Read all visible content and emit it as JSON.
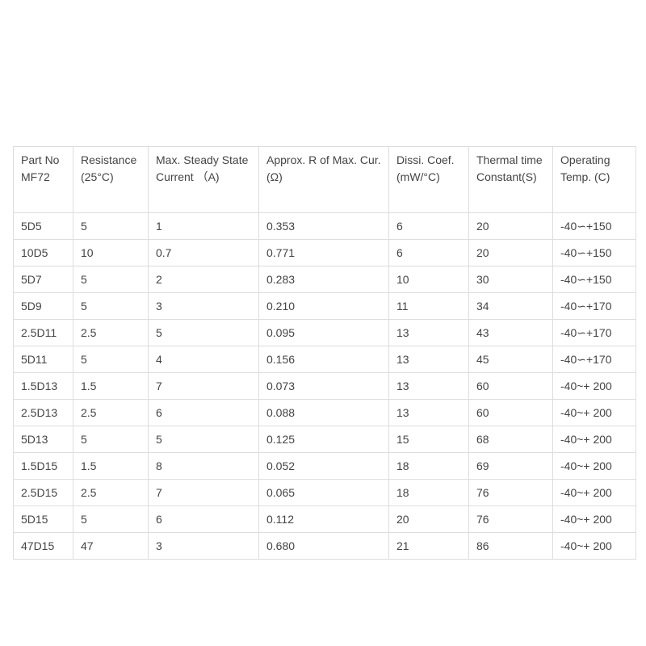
{
  "table": {
    "headers": [
      "Part No MF72",
      "Resistance (25°C)",
      "Max. Steady State Current （A)",
      "Approx. R of Max. Cur.(Ω)",
      "Dissi. Coef. (mW/°C)",
      "Thermal time Constant(S)",
      "Operating Temp. (C)"
    ],
    "rows": [
      [
        "5D5",
        "5",
        "1",
        "0.353",
        "6",
        "20",
        "-40∽+150"
      ],
      [
        "10D5",
        "10",
        "0.7",
        "0.771",
        "6",
        "20",
        "-40∽+150"
      ],
      [
        "5D7",
        "5",
        "2",
        "0.283",
        "10",
        "30",
        "-40∽+150"
      ],
      [
        "5D9",
        "5",
        "3",
        "0.210",
        "11",
        "34",
        "-40∽+170"
      ],
      [
        "2.5D11",
        "2.5",
        "5",
        "0.095",
        "13",
        "43",
        "-40∽+170"
      ],
      [
        "5D11",
        "5",
        "4",
        "0.156",
        "13",
        "45",
        "-40∽+170"
      ],
      [
        "1.5D13",
        "1.5",
        "7",
        "0.073",
        "13",
        "60",
        "-40~+ 200"
      ],
      [
        "2.5D13",
        "2.5",
        "6",
        "0.088",
        "13",
        "60",
        "-40~+ 200"
      ],
      [
        "5D13",
        "5",
        "5",
        "0.125",
        "15",
        "68",
        "-40~+ 200"
      ],
      [
        "1.5D15",
        "1.5",
        "8",
        "0.052",
        "18",
        "69",
        "-40~+ 200"
      ],
      [
        "2.5D15",
        "2.5",
        "7",
        "0.065",
        "18",
        "76",
        "-40~+ 200"
      ],
      [
        "5D15",
        "5",
        "6",
        "0.112",
        "20",
        "76",
        "-40~+ 200"
      ],
      [
        "47D15",
        "47",
        "3",
        "0.680",
        "21",
        "86",
        "-40~+ 200"
      ]
    ]
  }
}
